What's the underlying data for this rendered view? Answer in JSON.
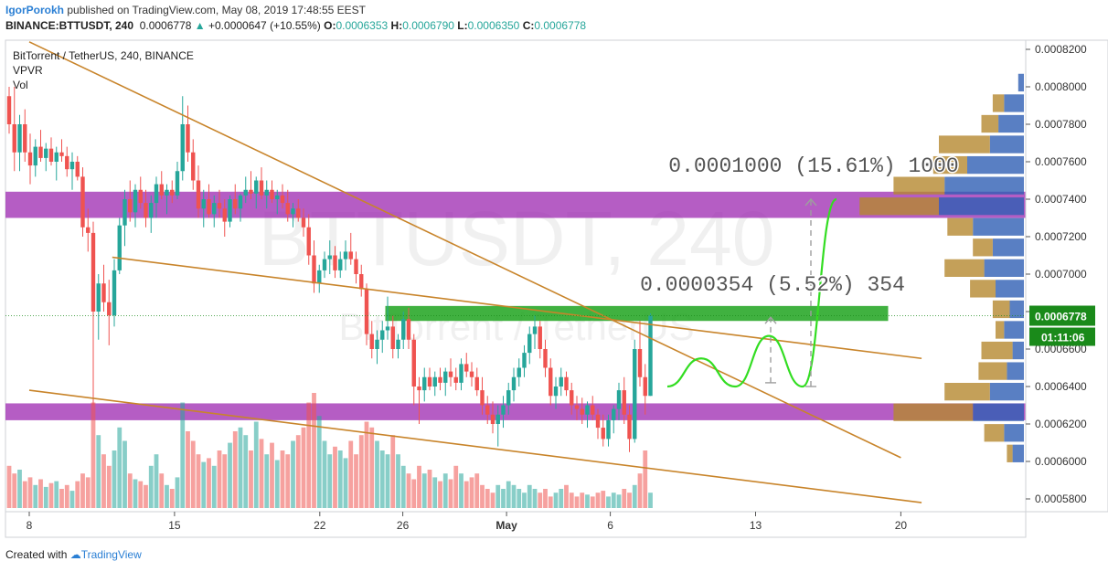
{
  "header": {
    "author": "IgorPorokh",
    "published_text": "published on TradingView.com, May 08, 2019 17:48:55 EEST",
    "symbol": "BINANCE:BTTUSDT, 240",
    "last": "0.0006778",
    "change": "+0.0000647 (+10.55%)",
    "o_label": "O:",
    "o_value": "0.0006353",
    "h_label": "H:",
    "h_value": "0.0006790",
    "l_label": "L:",
    "l_value": "0.0006350",
    "c_label": "C:",
    "c_value": "0.0006778"
  },
  "legend": {
    "title": "BitTorrent / TetherUS, 240, BINANCE",
    "indicator1": "VPVR",
    "indicator2": "Vol"
  },
  "watermark": {
    "symbol": "BTTUSDT, 240",
    "name": "BitTorrent / TetherUS"
  },
  "footer": {
    "created_with": "Created with",
    "brand": "TradingView"
  },
  "colors": {
    "up": "#26a69a",
    "down": "#ef5350",
    "trendline": "#c8842a",
    "purple_zone": "#9c27b0",
    "green_zone": "#1fa31f",
    "projection": "#33dd22",
    "price_label": "#1a8a1a",
    "volume_profile_up": "#2f5fb4",
    "volume_profile_down": "#b5882f"
  },
  "chart_data": {
    "type": "candlestick",
    "price_axis": {
      "ticks": [
        "0.0008200",
        "0.0008000",
        "0.0007800",
        "0.0007600",
        "0.0007400",
        "0.0007200",
        "0.0007000",
        "0.0006800",
        "0.0006600",
        "0.0006400",
        "0.0006200",
        "0.0006000",
        "0.0005800"
      ],
      "range": [
        0.000575,
        0.000825
      ]
    },
    "time_axis": {
      "ticks": [
        "8",
        "15",
        "22",
        "26",
        "May",
        "6",
        "13",
        "20"
      ],
      "dates": [
        "2019-04-08",
        "2019-04-15",
        "2019-04-22",
        "2019-04-26",
        "2019-05-01",
        "2019-05-06",
        "2019-05-13",
        "2019-05-20"
      ]
    },
    "last_price": "0.0006778",
    "countdown": "01:11:06",
    "zones": [
      {
        "type": "resistance",
        "color": "purple",
        "from": 0.00073,
        "to": 0.000744
      },
      {
        "type": "support",
        "color": "purple",
        "from": 0.000622,
        "to": 0.000631
      },
      {
        "type": "target",
        "color": "green",
        "from": 0.000675,
        "to": 0.000683
      }
    ],
    "measurements": [
      {
        "label": "0.0001000 (15.61%) 1000",
        "from": 0.00064,
        "to": 0.00074
      },
      {
        "label": "0.0000354 (5.52%) 354",
        "from": 0.000642,
        "to": 0.000677
      }
    ],
    "trendlines": [
      {
        "from": [
          "2019-04-08",
          0.000824
        ],
        "to": [
          "2019-05-20",
          0.000602
        ]
      },
      {
        "from": [
          "2019-04-12",
          0.000709
        ],
        "to": [
          "2019-05-21",
          0.000655
        ]
      },
      {
        "from": [
          "2019-04-08",
          0.000638
        ],
        "to": [
          "2019-05-21",
          0.000578
        ]
      }
    ],
    "projection_path": [
      [
        0.00064,
        0
      ],
      [
        0.000655,
        1
      ],
      [
        0.00064,
        2
      ],
      [
        0.000667,
        3
      ],
      [
        0.00064,
        4
      ],
      [
        0.00074,
        5
      ]
    ],
    "candles": [
      [
        0.000795,
        0.0008,
        0.000775,
        0.00078
      ],
      [
        0.00078,
        0.0008,
        0.000755,
        0.000765
      ],
      [
        0.000765,
        0.000785,
        0.000755,
        0.00078
      ],
      [
        0.00078,
        0.000788,
        0.00076,
        0.000765
      ],
      [
        0.000765,
        0.000775,
        0.000748,
        0.000758
      ],
      [
        0.000758,
        0.000772,
        0.000752,
        0.000768
      ],
      [
        0.000768,
        0.000777,
        0.00076,
        0.000762
      ],
      [
        0.000762,
        0.00077,
        0.000755,
        0.000767
      ],
      [
        0.000767,
        0.000773,
        0.000758,
        0.00076
      ],
      [
        0.00076,
        0.000768,
        0.00075,
        0.000765
      ],
      [
        0.000765,
        0.000772,
        0.00076,
        0.000763
      ],
      [
        0.000763,
        0.000768,
        0.000752,
        0.000756
      ],
      [
        0.000756,
        0.000765,
        0.000745,
        0.00076
      ],
      [
        0.00076,
        0.000763,
        0.00075,
        0.000752
      ],
      [
        0.000752,
        0.000757,
        0.00072,
        0.000725
      ],
      [
        0.000725,
        0.000735,
        0.000712,
        0.000722
      ],
      [
        0.000722,
        0.000728,
        0.00063,
        0.00068
      ],
      [
        0.00068,
        0.0007,
        0.000665,
        0.000695
      ],
      [
        0.000695,
        0.000705,
        0.00068,
        0.000685
      ],
      [
        0.000685,
        0.000697,
        0.000662,
        0.000678
      ],
      [
        0.000678,
        0.000708,
        0.000672,
        0.000702
      ],
      [
        0.000702,
        0.00073,
        0.0007,
        0.000726
      ],
      [
        0.000726,
        0.000745,
        0.000715,
        0.00074
      ],
      [
        0.00074,
        0.00075,
        0.000728,
        0.000733
      ],
      [
        0.000733,
        0.000748,
        0.000725,
        0.000745
      ],
      [
        0.000745,
        0.000752,
        0.000735,
        0.000738
      ],
      [
        0.000738,
        0.000745,
        0.000725,
        0.00073
      ],
      [
        0.00073,
        0.000742,
        0.000722,
        0.000738
      ],
      [
        0.000738,
        0.000752,
        0.00073,
        0.000748
      ],
      [
        0.000748,
        0.000755,
        0.00074,
        0.000742
      ],
      [
        0.000742,
        0.000748,
        0.000732,
        0.000745
      ],
      [
        0.000745,
        0.00075,
        0.000738,
        0.000742
      ],
      [
        0.000742,
        0.00076,
        0.00074,
        0.000755
      ],
      [
        0.000755,
        0.000795,
        0.00075,
        0.00078
      ],
      [
        0.00078,
        0.00079,
        0.00076,
        0.000765
      ],
      [
        0.000765,
        0.000772,
        0.000745,
        0.00075
      ],
      [
        0.00075,
        0.000758,
        0.00073,
        0.000735
      ],
      [
        0.000735,
        0.000745,
        0.000725,
        0.00074
      ],
      [
        0.00074,
        0.000748,
        0.00073,
        0.000732
      ],
      [
        0.000732,
        0.000742,
        0.000725,
        0.000738
      ],
      [
        0.000738,
        0.000745,
        0.00073,
        0.000735
      ],
      [
        0.000735,
        0.00074,
        0.00072,
        0.000728
      ],
      [
        0.000728,
        0.000742,
        0.000725,
        0.00074
      ],
      [
        0.00074,
        0.000748,
        0.000732,
        0.000735
      ],
      [
        0.000735,
        0.000743,
        0.000728,
        0.000742
      ],
      [
        0.000742,
        0.000752,
        0.000738,
        0.000745
      ],
      [
        0.000745,
        0.000755,
        0.00074,
        0.000743
      ],
      [
        0.000743,
        0.000752,
        0.000735,
        0.00075
      ],
      [
        0.00075,
        0.000757,
        0.00074,
        0.000742
      ],
      [
        0.000742,
        0.00075,
        0.000735,
        0.000745
      ],
      [
        0.000745,
        0.00075,
        0.000738,
        0.00074
      ],
      [
        0.00074,
        0.000745,
        0.000732,
        0.000742
      ],
      [
        0.000742,
        0.000748,
        0.000735,
        0.000738
      ],
      [
        0.000738,
        0.000745,
        0.000728,
        0.000732
      ],
      [
        0.000732,
        0.000738,
        0.000725,
        0.000735
      ],
      [
        0.000735,
        0.00074,
        0.000728,
        0.00073
      ],
      [
        0.00073,
        0.000735,
        0.00072,
        0.000725
      ],
      [
        0.000725,
        0.000732,
        0.000705,
        0.00071
      ],
      [
        0.00071,
        0.000718,
        0.00069,
        0.000695
      ],
      [
        0.000695,
        0.000705,
        0.00069,
        0.000702
      ],
      [
        0.000702,
        0.000712,
        0.000698,
        0.000708
      ],
      [
        0.000708,
        0.000718,
        0.0007,
        0.00071
      ],
      [
        0.00071,
        0.000715,
        0.000698,
        0.000702
      ],
      [
        0.000702,
        0.000712,
        0.000698,
        0.000708
      ],
      [
        0.000708,
        0.000718,
        0.000702,
        0.000712
      ],
      [
        0.000712,
        0.000722,
        0.000705,
        0.000708
      ],
      [
        0.000708,
        0.000712,
        0.000695,
        0.0007
      ],
      [
        0.0007,
        0.000705,
        0.000688,
        0.000692
      ],
      [
        0.000692,
        0.000695,
        0.000662,
        0.000668
      ],
      [
        0.000668,
        0.000675,
        0.000655,
        0.00066
      ],
      [
        0.00066,
        0.00067,
        0.000652,
        0.000665
      ],
      [
        0.000665,
        0.000675,
        0.000658,
        0.00067
      ],
      [
        0.00067,
        0.000688,
        0.000665,
        0.000672
      ],
      [
        0.000672,
        0.000678,
        0.000655,
        0.00066
      ],
      [
        0.00066,
        0.000668,
        0.000655,
        0.000665
      ],
      [
        0.000665,
        0.00068,
        0.00066,
        0.000676
      ],
      [
        0.000676,
        0.000682,
        0.00066,
        0.000665
      ],
      [
        0.000665,
        0.000668,
        0.00063,
        0.00064
      ],
      [
        0.00064,
        0.000645,
        0.00062,
        0.000638
      ],
      [
        0.000638,
        0.00065,
        0.000632,
        0.000645
      ],
      [
        0.000645,
        0.00065,
        0.000638,
        0.00064
      ],
      [
        0.00064,
        0.000648,
        0.000635,
        0.000645
      ],
      [
        0.000645,
        0.00065,
        0.000638,
        0.000642
      ],
      [
        0.000642,
        0.00065,
        0.000635,
        0.000648
      ],
      [
        0.000648,
        0.000655,
        0.00064,
        0.000645
      ],
      [
        0.000645,
        0.00065,
        0.000638,
        0.000642
      ],
      [
        0.000642,
        0.000655,
        0.000638,
        0.000652
      ],
      [
        0.000652,
        0.000658,
        0.000645,
        0.000648
      ],
      [
        0.000648,
        0.000653,
        0.00064,
        0.000645
      ],
      [
        0.000645,
        0.00065,
        0.000635,
        0.000638
      ],
      [
        0.000638,
        0.000645,
        0.000625,
        0.00063
      ],
      [
        0.00063,
        0.000635,
        0.00062,
        0.000625
      ],
      [
        0.000625,
        0.000632,
        0.000615,
        0.00062
      ],
      [
        0.00062,
        0.00063,
        0.000608,
        0.000625
      ],
      [
        0.000625,
        0.000635,
        0.000618,
        0.00063
      ],
      [
        0.00063,
        0.000642,
        0.000625,
        0.000638
      ],
      [
        0.000638,
        0.00065,
        0.000632,
        0.000645
      ],
      [
        0.000645,
        0.000655,
        0.00064,
        0.00065
      ],
      [
        0.00065,
        0.000662,
        0.000645,
        0.000658
      ],
      [
        0.000658,
        0.000672,
        0.000652,
        0.000668
      ],
      [
        0.000668,
        0.000678,
        0.00066,
        0.000672
      ],
      [
        0.000672,
        0.000675,
        0.000655,
        0.00066
      ],
      [
        0.00066,
        0.000665,
        0.000645,
        0.00065
      ],
      [
        0.00065,
        0.000655,
        0.00063,
        0.000635
      ],
      [
        0.000635,
        0.000645,
        0.000628,
        0.00064
      ],
      [
        0.00064,
        0.00065,
        0.000635,
        0.000645
      ],
      [
        0.000645,
        0.000648,
        0.000635,
        0.000638
      ],
      [
        0.000638,
        0.000642,
        0.000625,
        0.00063
      ],
      [
        0.00063,
        0.000635,
        0.000622,
        0.000628
      ],
      [
        0.000628,
        0.000634,
        0.00062,
        0.000625
      ],
      [
        0.000625,
        0.000632,
        0.000618,
        0.00063
      ],
      [
        0.00063,
        0.000635,
        0.000622,
        0.000625
      ],
      [
        0.000625,
        0.000628,
        0.000612,
        0.000618
      ],
      [
        0.000618,
        0.000625,
        0.000608,
        0.000612
      ],
      [
        0.000612,
        0.000625,
        0.000608,
        0.000622
      ],
      [
        0.000622,
        0.00063,
        0.000615,
        0.000628
      ],
      [
        0.000628,
        0.000642,
        0.000622,
        0.000638
      ],
      [
        0.000638,
        0.000645,
        0.00062,
        0.000625
      ],
      [
        0.000625,
        0.00063,
        0.000605,
        0.000612
      ],
      [
        0.000612,
        0.000665,
        0.00061,
        0.00066
      ],
      [
        0.00066,
        0.000675,
        0.00064,
        0.000645
      ],
      [
        0.000645,
        0.000652,
        0.000625,
        0.000635
      ],
      [
        0.000635,
        0.000679,
        0.000635,
        0.0006778
      ]
    ],
    "volumes": [
      22,
      18,
      20,
      14,
      16,
      12,
      15,
      11,
      13,
      14,
      10,
      12,
      9,
      14,
      18,
      16,
      55,
      38,
      28,
      22,
      30,
      42,
      35,
      18,
      15,
      14,
      12,
      22,
      28,
      18,
      12,
      10,
      16,
      55,
      40,
      35,
      28,
      24,
      26,
      22,
      30,
      28,
      34,
      40,
      42,
      38,
      30,
      45,
      36,
      28,
      34,
      25,
      30,
      28,
      35,
      38,
      42,
      55,
      60,
      48,
      35,
      28,
      32,
      30,
      26,
      35,
      28,
      38,
      45,
      42,
      35,
      30,
      28,
      38,
      28,
      22,
      18,
      15,
      22,
      18,
      20,
      16,
      14,
      18,
      15,
      22,
      18,
      14,
      16,
      18,
      12,
      10,
      8,
      12,
      10,
      14,
      12,
      10,
      8,
      12,
      10,
      8,
      10,
      6,
      8,
      10,
      12,
      8,
      6,
      8,
      7,
      6,
      8,
      9,
      6,
      8,
      7,
      10,
      8,
      12,
      18,
      30,
      8,
      12
    ],
    "volume_profile": [
      {
        "price": 0.000802,
        "up": 0.1,
        "down": 0
      },
      {
        "price": 0.000791,
        "up": 0.35,
        "down": 0.2
      },
      {
        "price": 0.00078,
        "up": 0.45,
        "down": 0.3
      },
      {
        "price": 0.000769,
        "up": 0.6,
        "down": 0.9
      },
      {
        "price": 0.000758,
        "up": 1.0,
        "down": 0.6
      },
      {
        "price": 0.000747,
        "up": 1.4,
        "down": 0.9
      },
      {
        "price": 0.000736,
        "up": 1.5,
        "down": 1.4
      },
      {
        "price": 0.000725,
        "up": 0.9,
        "down": 0.45
      },
      {
        "price": 0.000714,
        "up": 0.55,
        "down": 0.35
      },
      {
        "price": 0.000703,
        "up": 0.7,
        "down": 0.7
      },
      {
        "price": 0.000692,
        "up": 0.5,
        "down": 0.45
      },
      {
        "price": 0.000681,
        "up": 0.25,
        "down": 0.3
      },
      {
        "price": 0.00067,
        "up": 0.35,
        "down": 0.15
      },
      {
        "price": 0.000659,
        "up": 0.2,
        "down": 0.55
      },
      {
        "price": 0.000648,
        "up": 0.3,
        "down": 0.5
      },
      {
        "price": 0.000637,
        "up": 0.6,
        "down": 0.8
      },
      {
        "price": 0.000626,
        "up": 0.9,
        "down": 1.4
      },
      {
        "price": 0.000615,
        "up": 0.35,
        "down": 0.35
      },
      {
        "price": 0.000604,
        "up": 0.2,
        "down": 0.1
      }
    ]
  }
}
